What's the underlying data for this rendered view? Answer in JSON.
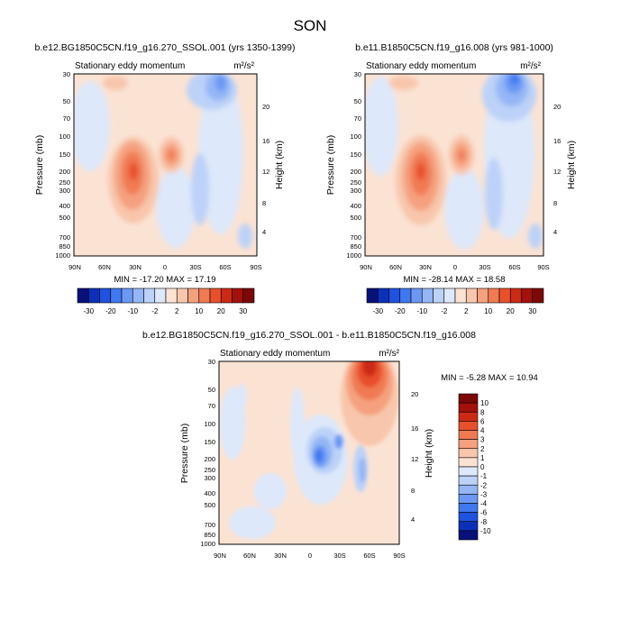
{
  "figure": {
    "title": "SON"
  },
  "chart_data": [
    {
      "type": "heatmap",
      "title": "b.e12.BG1850C5CN.f19_g16.270_SSOL.001 (yrs 1350-1399)",
      "subtitle": "Stationary eddy momentum",
      "units": "m²/s²",
      "xlabel": "",
      "ylabel": "Pressure (mb)",
      "ylabel_right": "Height (km)",
      "x_ticks": [
        "90N",
        "60N",
        "30N",
        "0",
        "30S",
        "60S",
        "90S"
      ],
      "y_ticks": [
        "30",
        "50",
        "70",
        "100",
        "150",
        "200",
        "250",
        "300",
        "400",
        "500",
        "700",
        "850",
        "1000"
      ],
      "y_scale": "log",
      "height_ticks": [
        "4",
        "8",
        "12",
        "16",
        "20"
      ],
      "min_label": "MIN = -17.20  MAX = 17.19",
      "min": -17.2,
      "max": 17.19,
      "colorbar_labels": [
        "-30",
        "-20",
        "-10",
        "-2",
        "2",
        "10",
        "20",
        "30"
      ]
    },
    {
      "type": "heatmap",
      "title": "b.e11.B1850C5CN.f19_g16.008 (yrs 981-1000)",
      "subtitle": "Stationary eddy momentum",
      "units": "m²/s²",
      "xlabel": "",
      "ylabel": "Pressure (mb)",
      "ylabel_right": "Height (km)",
      "x_ticks": [
        "90N",
        "60N",
        "30N",
        "0",
        "30S",
        "60S",
        "90S"
      ],
      "y_ticks": [
        "30",
        "50",
        "70",
        "100",
        "150",
        "200",
        "250",
        "300",
        "400",
        "500",
        "700",
        "850",
        "1000"
      ],
      "y_scale": "log",
      "height_ticks": [
        "4",
        "8",
        "12",
        "16",
        "20"
      ],
      "min_label": "MIN = -28.14  MAX = 18.58",
      "min": -28.14,
      "max": 18.58,
      "colorbar_labels": [
        "-30",
        "-20",
        "-10",
        "-2",
        "2",
        "10",
        "20",
        "30"
      ]
    },
    {
      "type": "heatmap",
      "title": "b.e12.BG1850C5CN.f19_g16.270_SSOL.001 - b.e11.B1850C5CN.f19_g16.008",
      "subtitle": "Stationary eddy momentum",
      "units": "m²/s²",
      "xlabel": "",
      "ylabel": "Pressure (mb)",
      "ylabel_right": "Height (km)",
      "x_ticks": [
        "90N",
        "60N",
        "30N",
        "0",
        "30S",
        "60S",
        "90S"
      ],
      "y_ticks": [
        "30",
        "50",
        "70",
        "100",
        "150",
        "200",
        "250",
        "300",
        "400",
        "500",
        "700",
        "850",
        "1000"
      ],
      "y_scale": "log",
      "height_ticks": [
        "4",
        "8",
        "12",
        "16",
        "20"
      ],
      "min_label": "MIN = -5.28  MAX = 10.94",
      "min": -5.28,
      "max": 10.94,
      "colorbar_labels": [
        "10",
        "8",
        "6",
        "4",
        "3",
        "2",
        "1",
        "0",
        "-1",
        "-2",
        "-3",
        "-4",
        "-6",
        "-8",
        "-10"
      ]
    }
  ],
  "palettes": {
    "top": [
      "#08107a",
      "#0c30b8",
      "#1f52e0",
      "#3f78f0",
      "#6a98f4",
      "#94b6f6",
      "#bcd2f8",
      "#dde8fa",
      "#fbe3d4",
      "#f8c6ac",
      "#f5a07e",
      "#f07a52",
      "#e8502c",
      "#cc2a14",
      "#a4100c",
      "#7c0808"
    ],
    "diff": [
      "#08107a",
      "#0c30b8",
      "#1f52e0",
      "#3f78f0",
      "#6a98f4",
      "#94b6f6",
      "#bcd2f8",
      "#dde8fa",
      "#fbe3d4",
      "#f8c6ac",
      "#f5a07e",
      "#f07a52",
      "#e8502c",
      "#cc2a14",
      "#a4100c",
      "#7c0808"
    ]
  }
}
